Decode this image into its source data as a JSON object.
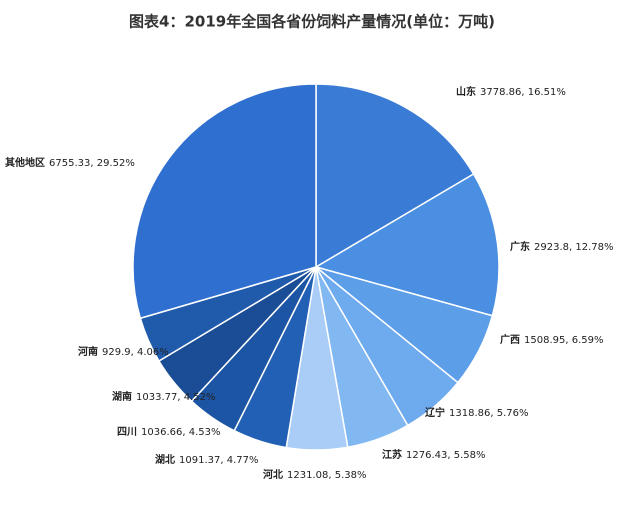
{
  "chart_data": {
    "type": "pie",
    "title": "图表4：2019年全国各省份饲料产量情况(单位：万吨)",
    "categories": [
      "山东",
      "广东",
      "广西",
      "辽宁",
      "江苏",
      "河北",
      "湖北",
      "四川",
      "湖南",
      "河南",
      "其他地区"
    ],
    "values": [
      3778.86,
      2923.8,
      1508.95,
      1318.86,
      1276.43,
      1231.08,
      1091.37,
      1036.66,
      1033.77,
      929.9,
      6755.33
    ],
    "value_labels": [
      "3778.86, 16.51%",
      "2923.8, 12.78%",
      "1508.95, 6.59%",
      "1318.86, 5.76%",
      "1276.43, 5.58%",
      "1231.08, 5.38%",
      "1091.37, 4.77%",
      "1036.66, 4.53%",
      "1033.77, 4.52%",
      "929.9, 4.06%",
      "6755.33, 29.52%"
    ],
    "colors": [
      "#3a7bd5",
      "#4a8fe2",
      "#5c9ee8",
      "#6eaaee",
      "#82b8f2",
      "#a9cdf6",
      "#2160b4",
      "#1c55a3",
      "#1a4d96",
      "#1f5aab",
      "#2f6fd0"
    ]
  }
}
